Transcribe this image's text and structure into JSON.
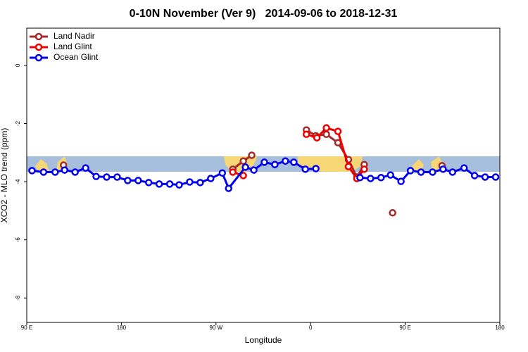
{
  "chart_data": {
    "type": "line",
    "title": "0-10N November (Ver 9)   2014-09-06 to 2018-12-31",
    "x_label": "Longitude",
    "y_label": "XCO2 - MLO trend (ppm)",
    "xlim": [
      90,
      540
    ],
    "ylim": [
      -8.84,
      1.28
    ],
    "xticks": [
      {
        "value": 90,
        "label": "90 E"
      },
      180,
      {
        "value": 270,
        "label": "90 W"
      },
      {
        "value": 360,
        "label": "0"
      },
      {
        "value": 450,
        "label": "90 E"
      },
      {
        "value": 540,
        "label": "180"
      }
    ],
    "yticks": [
      0,
      -2,
      -4,
      -6,
      -8
    ],
    "grid": false,
    "legend": "top-left",
    "series": [
      {
        "name": "Land Nadir",
        "color": "#a52a2a",
        "x": [
          125,
          null,
          286,
          296,
          304,
          null,
          356,
          365,
          375,
          386,
          396,
          404,
          411,
          null,
          438,
          null,
          485
        ],
        "values": [
          -3.43,
          null,
          -3.57,
          -3.29,
          -3.09,
          null,
          -2.22,
          -2.42,
          -2.37,
          -2.66,
          -3.24,
          -3.84,
          -3.41,
          null,
          -5.07,
          null,
          -3.45
        ]
      },
      {
        "name": "Land Glint",
        "color": "#ee0000",
        "x": [
          286,
          296,
          null,
          356,
          366,
          375,
          386,
          396,
          404,
          411
        ],
        "values": [
          -3.67,
          -3.79,
          null,
          -2.37,
          -2.49,
          -2.15,
          -2.27,
          -3.48,
          -3.89,
          -3.57
        ]
      },
      {
        "name": "Ocean Glint",
        "color": "#0000ee",
        "x": [
          95,
          106,
          117,
          126,
          136,
          146,
          156,
          166,
          176,
          186,
          196,
          206,
          216,
          226,
          235,
          245,
          255,
          265,
          276,
          282,
          298,
          306,
          316,
          326,
          336,
          344,
          355,
          365,
          null,
          407,
          417,
          427,
          436,
          446,
          455,
          465,
          476,
          486,
          495,
          506,
          516,
          526,
          536
        ],
        "values": [
          -3.62,
          -3.67,
          -3.67,
          -3.6,
          -3.67,
          -3.53,
          -3.82,
          -3.84,
          -3.84,
          -3.96,
          -3.96,
          -4.03,
          -4.08,
          -4.08,
          -4.11,
          -4.01,
          -4.03,
          -3.89,
          -3.7,
          -4.23,
          -3.5,
          -3.6,
          -3.33,
          -3.41,
          -3.29,
          -3.33,
          -3.57,
          -3.55,
          null,
          -3.86,
          -3.89,
          -3.86,
          -3.77,
          -3.99,
          -3.62,
          -3.67,
          -3.67,
          -3.57,
          -3.67,
          -3.53,
          -3.79,
          -3.84,
          -3.84
        ]
      }
    ]
  }
}
